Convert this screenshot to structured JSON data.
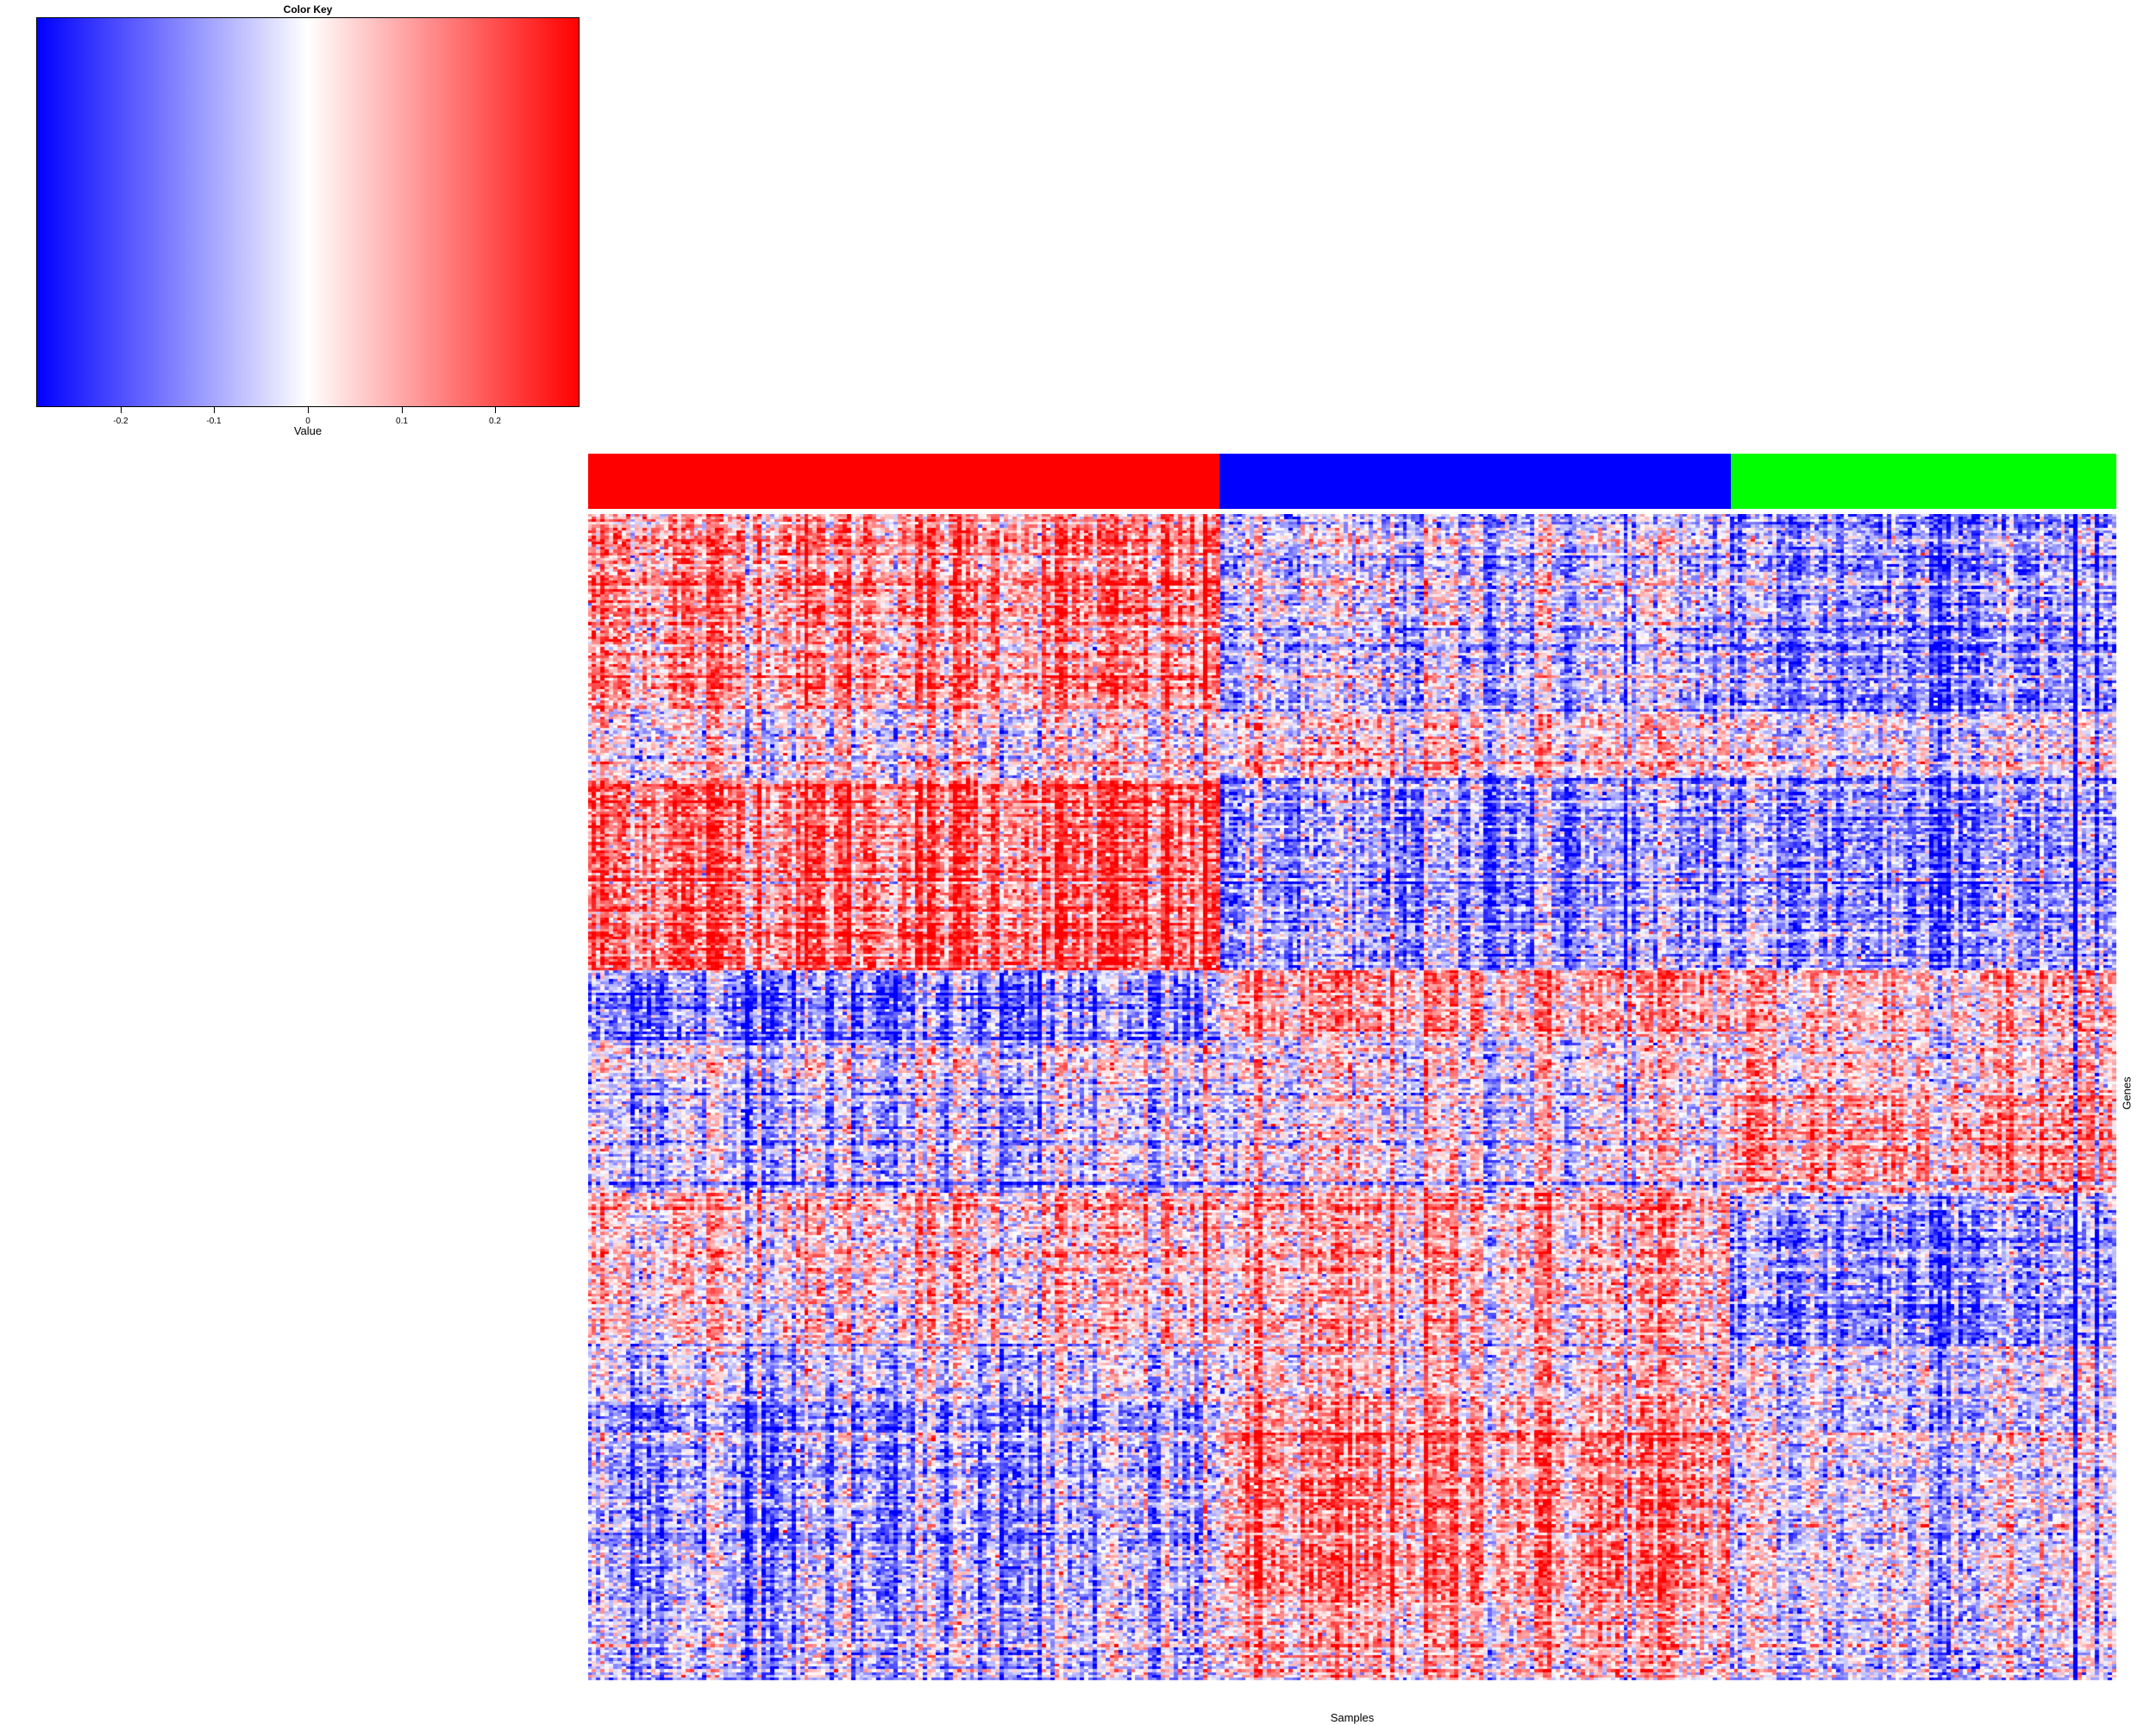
{
  "chart_data": {
    "type": "heatmap",
    "title": "",
    "xlabel": "Samples",
    "ylabel": "Genes",
    "color_key": {
      "title": "Color Key",
      "xlabel": "Value",
      "range": [
        -0.29,
        0.29
      ],
      "ticks": [
        -0.2,
        -0.1,
        0,
        0.1,
        0.2
      ],
      "tick_labels": [
        "-0.2",
        "-0.1",
        "0",
        "0.1",
        "0.2"
      ],
      "low_color": "#0000ff",
      "mid_color": "#ffffff",
      "high_color": "#ff0000"
    },
    "column_groups": [
      {
        "color": "#ff0000",
        "fraction": 0.413
      },
      {
        "color": "#0000ff",
        "fraction": 0.335
      },
      {
        "color": "#00ff00",
        "fraction": 0.252
      }
    ],
    "row_blocks": [
      {
        "fraction": 0.17,
        "group_means": [
          0.12,
          -0.06,
          -0.12
        ]
      },
      {
        "fraction": 0.055,
        "group_means": [
          0.0,
          0.02,
          -0.02
        ]
      },
      {
        "fraction": 0.165,
        "group_means": [
          0.16,
          -0.12,
          -0.12
        ]
      },
      {
        "fraction": 0.06,
        "group_means": [
          -0.13,
          0.1,
          0.08
        ]
      },
      {
        "fraction": 0.04,
        "group_means": [
          -0.03,
          -0.01,
          0.04
        ]
      },
      {
        "fraction": 0.09,
        "group_means": [
          -0.07,
          -0.02,
          0.1
        ]
      },
      {
        "fraction": 0.13,
        "group_means": [
          0.04,
          0.06,
          -0.12
        ]
      },
      {
        "fraction": 0.05,
        "group_means": [
          -0.05,
          0.03,
          -0.04
        ]
      },
      {
        "fraction": 0.17,
        "group_means": [
          -0.1,
          0.12,
          -0.02
        ]
      },
      {
        "fraction": 0.07,
        "group_means": [
          -0.06,
          0.06,
          -0.03
        ]
      }
    ],
    "grid": {
      "columns": 360,
      "rows": 420
    },
    "seed": 12345
  }
}
